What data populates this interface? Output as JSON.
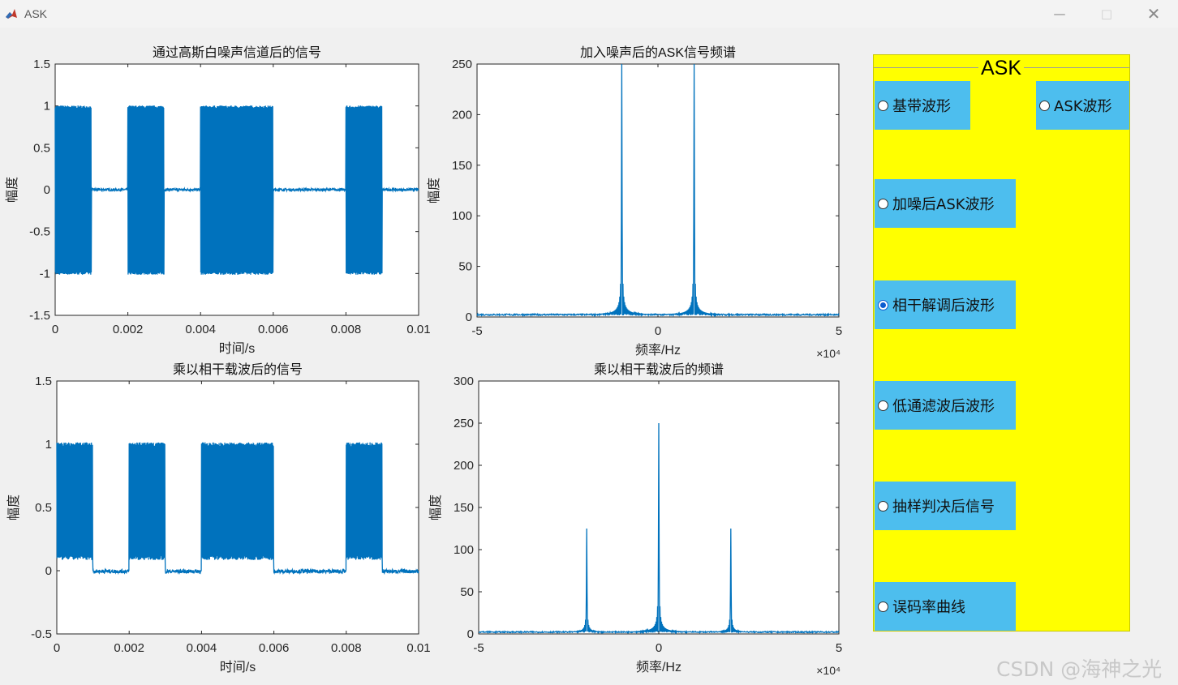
{
  "window": {
    "title": "ASK",
    "minimize_icon": "minimize-icon",
    "maximize_icon": "maximize-icon",
    "close_icon": "close-icon",
    "app_icon": "matlab-icon"
  },
  "plots": [
    {
      "id": "p1",
      "title": "通过高斯白噪声信道后的信号",
      "xlabel": "时间/s",
      "ylabel": "幅度",
      "xlim": [
        0,
        0.01
      ],
      "ylim": [
        -1.5,
        1.5
      ],
      "xticks": [
        "0",
        "0.002",
        "0.004",
        "0.006",
        "0.008",
        "0.01"
      ],
      "yticks": [
        "-1.5",
        "-1",
        "-0.5",
        "0",
        "0.5",
        "1",
        "1.5"
      ],
      "exponent": ""
    },
    {
      "id": "p2",
      "title": "加入噪声后的ASK信号频谱",
      "xlabel": "频率/Hz",
      "ylabel": "幅度",
      "xlim": [
        -5,
        5
      ],
      "ylim": [
        0,
        250
      ],
      "xticks": [
        "-5",
        "0",
        "5"
      ],
      "yticks": [
        "0",
        "50",
        "100",
        "150",
        "200",
        "250"
      ],
      "exponent": "×10⁴"
    },
    {
      "id": "p3",
      "title": "乘以相干载波后的信号",
      "xlabel": "时间/s",
      "ylabel": "幅度",
      "xlim": [
        0,
        0.01
      ],
      "ylim": [
        -0.5,
        1.5
      ],
      "xticks": [
        "0",
        "0.002",
        "0.004",
        "0.006",
        "0.008",
        "0.01"
      ],
      "yticks": [
        "-0.5",
        "0",
        "0.5",
        "1",
        "1.5"
      ],
      "exponent": ""
    },
    {
      "id": "p4",
      "title": "乘以相干载波后的频谱",
      "xlabel": "频率/Hz",
      "ylabel": "幅度",
      "xlim": [
        -5,
        5
      ],
      "ylim": [
        0,
        300
      ],
      "xticks": [
        "-5",
        "0",
        "5"
      ],
      "yticks": [
        "0",
        "50",
        "100",
        "150",
        "200",
        "250",
        "300"
      ],
      "exponent": "×10⁴"
    }
  ],
  "signal": {
    "bits": [
      1,
      0,
      1,
      0,
      1,
      1,
      0,
      0,
      1,
      0
    ],
    "bit_duration_s": 0.001
  },
  "panel": {
    "title": "ASK",
    "options": [
      {
        "label": "基带波形",
        "selected": false
      },
      {
        "label": "ASK波形",
        "selected": false
      },
      {
        "label": "加噪后ASK波形",
        "selected": false
      },
      {
        "label": "相干解调后波形",
        "selected": true
      },
      {
        "label": "低通滤波后波形",
        "selected": false
      },
      {
        "label": "抽样判决后信号",
        "selected": false
      },
      {
        "label": "误码率曲线",
        "selected": false
      }
    ]
  },
  "colors": {
    "line": "#0072bd",
    "panel_bg": "#ffff00",
    "button_bg": "#4dbeee"
  },
  "watermark": "CSDN @海神之光"
}
